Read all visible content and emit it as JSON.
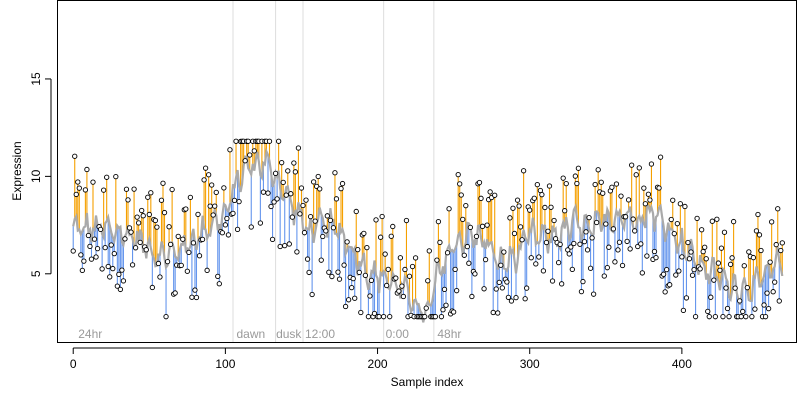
{
  "chart_data": {
    "type": "scatter",
    "xlabel": "Sample index",
    "ylabel": "Expression",
    "xlim": [
      -10,
      475
    ],
    "ylim": [
      1.5,
      19
    ],
    "xticks": [
      0,
      100,
      200,
      300,
      400
    ],
    "yticks": [
      5,
      10,
      15
    ],
    "grid": false,
    "vlines": [
      105,
      133,
      151,
      204,
      237
    ],
    "annotations": [
      {
        "x": 2,
        "label": "24hr"
      },
      {
        "x": 106,
        "label": "dawn"
      },
      {
        "x": 132,
        "label": "dusk"
      },
      {
        "x": 151,
        "label": "12:00"
      },
      {
        "x": 204,
        "label": "0:00"
      },
      {
        "x": 238,
        "label": "48hr"
      }
    ],
    "colors": {
      "above": "#f5a000",
      "below": "#6495ed",
      "smooth": "#aaaaaa",
      "vline": "#dddddd",
      "point": "#000000"
    },
    "anchors": [
      [
        0,
        7.3
      ],
      [
        20,
        7.3
      ],
      [
        40,
        6.9
      ],
      [
        55,
        6.0
      ],
      [
        65,
        6.0
      ],
      [
        80,
        6.8
      ],
      [
        90,
        7.5
      ],
      [
        100,
        8.0
      ],
      [
        108,
        9.8
      ],
      [
        115,
        10.5
      ],
      [
        125,
        10.7
      ],
      [
        132,
        10.2
      ],
      [
        140,
        9.0
      ],
      [
        150,
        7.8
      ],
      [
        155,
        7.2
      ],
      [
        165,
        7.6
      ],
      [
        175,
        7.2
      ],
      [
        185,
        6.0
      ],
      [
        195,
        5.0
      ],
      [
        205,
        4.8
      ],
      [
        215,
        4.3
      ],
      [
        225,
        3.5
      ],
      [
        232,
        2.7
      ],
      [
        240,
        5.0
      ],
      [
        250,
        6.5
      ],
      [
        260,
        7.0
      ],
      [
        270,
        6.8
      ],
      [
        280,
        5.5
      ],
      [
        290,
        5.8
      ],
      [
        300,
        7.0
      ],
      [
        310,
        6.8
      ],
      [
        320,
        7.0
      ],
      [
        330,
        7.6
      ],
      [
        340,
        7.2
      ],
      [
        350,
        7.8
      ],
      [
        360,
        8.0
      ],
      [
        370,
        7.8
      ],
      [
        380,
        8.2
      ],
      [
        390,
        7.5
      ],
      [
        400,
        6.5
      ],
      [
        410,
        5.6
      ],
      [
        420,
        5.0
      ],
      [
        430,
        4.5
      ],
      [
        440,
        4.2
      ],
      [
        450,
        4.5
      ],
      [
        460,
        5.2
      ],
      [
        466,
        5.8
      ]
    ]
  }
}
